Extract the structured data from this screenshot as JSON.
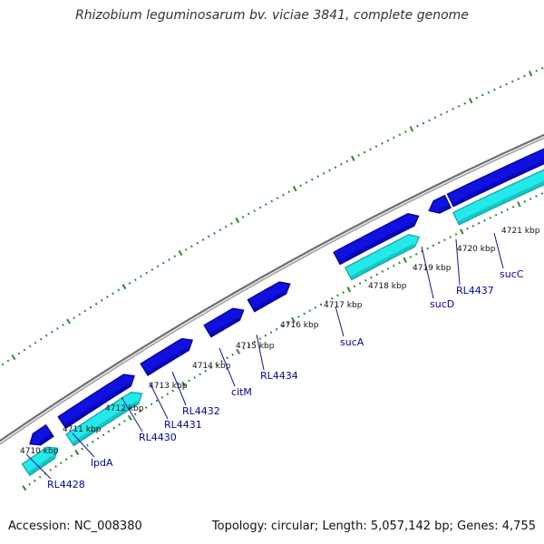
{
  "title": "Rhizobium leguminosarum bv. viciae 3841, complete genome",
  "footer": {
    "accession": "Accession: NC_008380",
    "info": "Topology: circular; Length: 5,057,142 bp; Genes: 4,755"
  },
  "colors": {
    "forward_cds": "#1010e0",
    "forward_cds_edge": "#0000a0",
    "reverse_cds": "#22eaea",
    "reverse_cds_edge": "#12a8a8",
    "backbone": "#8a8a8a",
    "ticks": "#2a8a2a",
    "gene_label": "#0000c8"
  },
  "kbp_ticks": [
    "4710 kbp",
    "4711 kbp",
    "4712 kbp",
    "4713 kbp",
    "4714 kbp",
    "4715 kbp",
    "4716 kbp",
    "4717 kbp",
    "4718 kbp",
    "4719 kbp",
    "4720 kbp",
    "4721 kbp"
  ],
  "gene_labels": [
    "RL4428",
    "lpdA",
    "RL4430",
    "RL4431",
    "RL4432",
    "citM",
    "RL4434",
    "sucA",
    "sucD",
    "RL4437",
    "sucC"
  ]
}
